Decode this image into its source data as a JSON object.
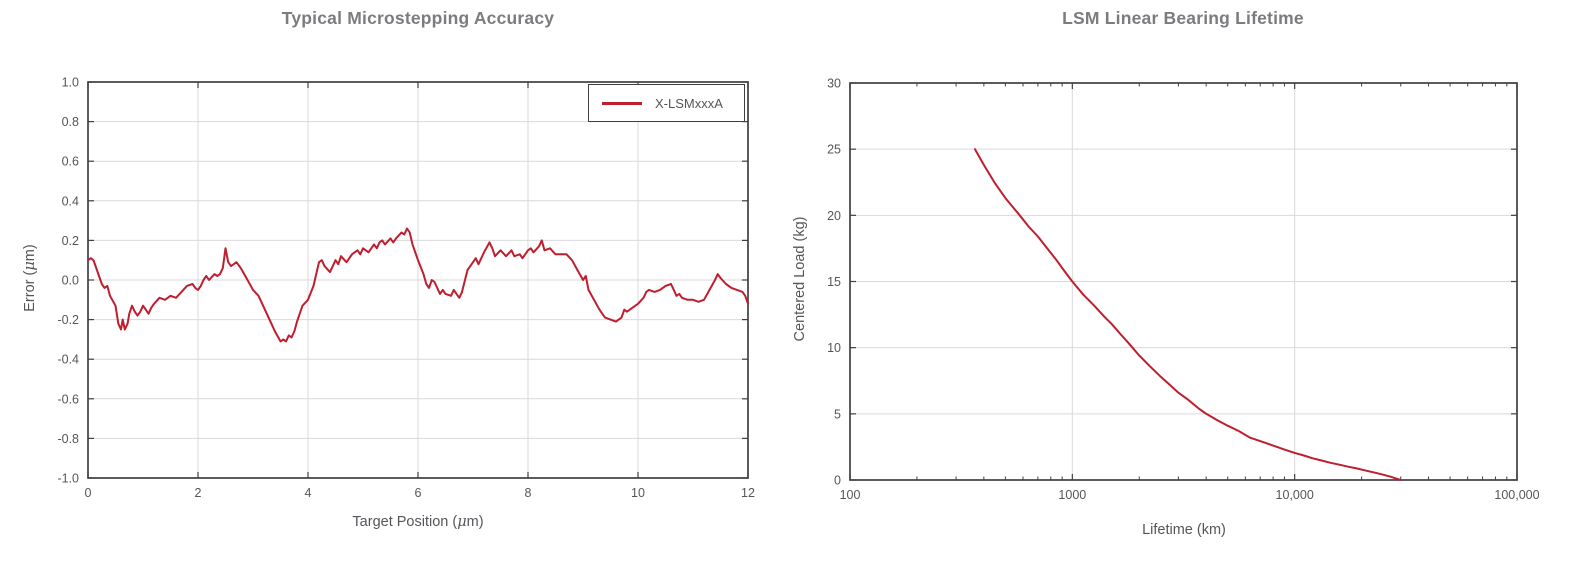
{
  "colors": {
    "series_red": "#be1e2d",
    "title_gray": "#7b7c7f",
    "tick_gray": "#55565a",
    "grid_gray": "#d9d9da",
    "axis_dark": "#3f4042",
    "background": "#ffffff"
  },
  "chart_data": [
    {
      "type": "line",
      "title": "Typical Microstepping Accuracy",
      "xlabel": "Target Position (μm)",
      "ylabel": "Error (μm)",
      "xlim": [
        0,
        12
      ],
      "ylim": [
        -1.0,
        1.0
      ],
      "xscale": "linear",
      "grid": "on",
      "legend_position": "top-right",
      "legend": [
        "X-LSMxxxA"
      ],
      "xticks": [
        0,
        2,
        4,
        6,
        8,
        10,
        12
      ],
      "xtick_labels": [
        "0",
        "2",
        "4",
        "6",
        "8",
        "10",
        "12"
      ],
      "yticks": [
        1.0,
        0.8,
        0.6,
        0.4,
        0.2,
        0.0,
        -0.2,
        -0.4,
        -0.6,
        -0.8,
        -1.0
      ],
      "ytick_labels": [
        "1.0",
        "0.8",
        "0.6",
        "0.4",
        "0.2",
        "0.0",
        "-0.2",
        "-0.4",
        "-0.6",
        "-0.8",
        "-1.0"
      ],
      "series": [
        {
          "name": "X-LSMxxxA",
          "color": "#be1e2d",
          "points": [
            [
              0,
              0.1
            ],
            [
              0.05,
              0.11
            ],
            [
              0.1,
              0.1
            ],
            [
              0.2,
              0.02
            ],
            [
              0.25,
              -0.02
            ],
            [
              0.3,
              -0.04
            ],
            [
              0.35,
              -0.03
            ],
            [
              0.4,
              -0.08
            ],
            [
              0.5,
              -0.13
            ],
            [
              0.55,
              -0.22
            ],
            [
              0.6,
              -0.25
            ],
            [
              0.63,
              -0.2
            ],
            [
              0.67,
              -0.25
            ],
            [
              0.72,
              -0.22
            ],
            [
              0.75,
              -0.17
            ],
            [
              0.8,
              -0.13
            ],
            [
              0.85,
              -0.16
            ],
            [
              0.9,
              -0.18
            ],
            [
              0.95,
              -0.16
            ],
            [
              1,
              -0.13
            ],
            [
              1.05,
              -0.15
            ],
            [
              1.1,
              -0.17
            ],
            [
              1.15,
              -0.14
            ],
            [
              1.2,
              -0.12
            ],
            [
              1.3,
              -0.09
            ],
            [
              1.4,
              -0.1
            ],
            [
              1.5,
              -0.08
            ],
            [
              1.6,
              -0.09
            ],
            [
              1.7,
              -0.06
            ],
            [
              1.8,
              -0.03
            ],
            [
              1.9,
              -0.02
            ],
            [
              1.95,
              -0.04
            ],
            [
              2,
              -0.05
            ],
            [
              2.05,
              -0.03
            ],
            [
              2.1,
              0
            ],
            [
              2.15,
              0.02
            ],
            [
              2.2,
              0
            ],
            [
              2.3,
              0.03
            ],
            [
              2.35,
              0.02
            ],
            [
              2.4,
              0.03
            ],
            [
              2.45,
              0.06
            ],
            [
              2.5,
              0.16
            ],
            [
              2.55,
              0.09
            ],
            [
              2.6,
              0.07
            ],
            [
              2.7,
              0.09
            ],
            [
              2.75,
              0.07
            ],
            [
              2.8,
              0.05
            ],
            [
              2.9,
              0
            ],
            [
              3,
              -0.05
            ],
            [
              3.1,
              -0.08
            ],
            [
              3.2,
              -0.14
            ],
            [
              3.3,
              -0.2
            ],
            [
              3.4,
              -0.26
            ],
            [
              3.5,
              -0.31
            ],
            [
              3.55,
              -0.3
            ],
            [
              3.6,
              -0.31
            ],
            [
              3.65,
              -0.28
            ],
            [
              3.7,
              -0.29
            ],
            [
              3.75,
              -0.26
            ],
            [
              3.8,
              -0.21
            ],
            [
              3.9,
              -0.13
            ],
            [
              4,
              -0.1
            ],
            [
              4.1,
              -0.03
            ],
            [
              4.2,
              0.09
            ],
            [
              4.25,
              0.1
            ],
            [
              4.3,
              0.07
            ],
            [
              4.4,
              0.04
            ],
            [
              4.5,
              0.1
            ],
            [
              4.55,
              0.08
            ],
            [
              4.6,
              0.12
            ],
            [
              4.7,
              0.09
            ],
            [
              4.8,
              0.13
            ],
            [
              4.9,
              0.15
            ],
            [
              4.95,
              0.13
            ],
            [
              5,
              0.16
            ],
            [
              5.1,
              0.14
            ],
            [
              5.2,
              0.18
            ],
            [
              5.25,
              0.16
            ],
            [
              5.3,
              0.19
            ],
            [
              5.35,
              0.2
            ],
            [
              5.4,
              0.18
            ],
            [
              5.5,
              0.21
            ],
            [
              5.55,
              0.19
            ],
            [
              5.6,
              0.21
            ],
            [
              5.7,
              0.24
            ],
            [
              5.75,
              0.23
            ],
            [
              5.8,
              0.26
            ],
            [
              5.85,
              0.24
            ],
            [
              5.9,
              0.18
            ],
            [
              6,
              0.1
            ],
            [
              6.1,
              0.03
            ],
            [
              6.15,
              -0.02
            ],
            [
              6.2,
              -0.04
            ],
            [
              6.25,
              0
            ],
            [
              6.3,
              -0.01
            ],
            [
              6.4,
              -0.07
            ],
            [
              6.45,
              -0.05
            ],
            [
              6.5,
              -0.07
            ],
            [
              6.6,
              -0.08
            ],
            [
              6.65,
              -0.05
            ],
            [
              6.7,
              -0.07
            ],
            [
              6.75,
              -0.09
            ],
            [
              6.8,
              -0.06
            ],
            [
              6.9,
              0.05
            ],
            [
              7,
              0.09
            ],
            [
              7.05,
              0.11
            ],
            [
              7.1,
              0.08
            ],
            [
              7.2,
              0.14
            ],
            [
              7.3,
              0.19
            ],
            [
              7.35,
              0.16
            ],
            [
              7.4,
              0.12
            ],
            [
              7.5,
              0.15
            ],
            [
              7.6,
              0.12
            ],
            [
              7.7,
              0.15
            ],
            [
              7.75,
              0.12
            ],
            [
              7.85,
              0.13
            ],
            [
              7.9,
              0.11
            ],
            [
              8,
              0.15
            ],
            [
              8.05,
              0.16
            ],
            [
              8.1,
              0.14
            ],
            [
              8.2,
              0.17
            ],
            [
              8.25,
              0.2
            ],
            [
              8.3,
              0.15
            ],
            [
              8.4,
              0.16
            ],
            [
              8.5,
              0.13
            ],
            [
              8.6,
              0.13
            ],
            [
              8.7,
              0.13
            ],
            [
              8.8,
              0.1
            ],
            [
              8.9,
              0.05
            ],
            [
              9,
              0
            ],
            [
              9.05,
              0.02
            ],
            [
              9.1,
              -0.05
            ],
            [
              9.2,
              -0.1
            ],
            [
              9.3,
              -0.15
            ],
            [
              9.4,
              -0.19
            ],
            [
              9.5,
              -0.2
            ],
            [
              9.6,
              -0.21
            ],
            [
              9.7,
              -0.19
            ],
            [
              9.75,
              -0.15
            ],
            [
              9.8,
              -0.16
            ],
            [
              9.9,
              -0.14
            ],
            [
              10,
              -0.12
            ],
            [
              10.1,
              -0.09
            ],
            [
              10.15,
              -0.06
            ],
            [
              10.2,
              -0.05
            ],
            [
              10.3,
              -0.06
            ],
            [
              10.4,
              -0.05
            ],
            [
              10.5,
              -0.03
            ],
            [
              10.6,
              -0.02
            ],
            [
              10.65,
              -0.05
            ],
            [
              10.7,
              -0.08
            ],
            [
              10.75,
              -0.07
            ],
            [
              10.8,
              -0.09
            ],
            [
              10.9,
              -0.1
            ],
            [
              11,
              -0.1
            ],
            [
              11.1,
              -0.11
            ],
            [
              11.2,
              -0.1
            ],
            [
              11.3,
              -0.05
            ],
            [
              11.4,
              0
            ],
            [
              11.45,
              0.03
            ],
            [
              11.5,
              0.01
            ],
            [
              11.6,
              -0.02
            ],
            [
              11.7,
              -0.04
            ],
            [
              11.8,
              -0.05
            ],
            [
              11.9,
              -0.06
            ],
            [
              11.95,
              -0.08
            ],
            [
              12,
              -0.12
            ]
          ]
        }
      ]
    },
    {
      "type": "line",
      "title": "LSM Linear Bearing Lifetime",
      "xlabel": "Lifetime (km)",
      "ylabel": "Centered Load (kg)",
      "xlim": [
        100,
        100000
      ],
      "ylim": [
        0,
        30
      ],
      "xscale": "log",
      "grid": "on",
      "legend": [],
      "xticks": [
        100,
        1000,
        10000,
        100000
      ],
      "xtick_labels": [
        "100",
        "1000",
        "10,000",
        "100,000"
      ],
      "yticks": [
        0,
        5,
        10,
        15,
        20,
        25,
        30
      ],
      "ytick_labels": [
        "0",
        "5",
        "10",
        "15",
        "20",
        "25",
        "30"
      ],
      "series": [
        {
          "name": "LSM linear bearing lifetime",
          "color": "#be1e2d",
          "points": [
            [
              365,
              25
            ],
            [
              400,
              23.8
            ],
            [
              450,
              22.4
            ],
            [
              500,
              21.3
            ],
            [
              580,
              20
            ],
            [
              640,
              19.1
            ],
            [
              700,
              18.4
            ],
            [
              780,
              17.4
            ],
            [
              850,
              16.6
            ],
            [
              920,
              15.8
            ],
            [
              1000,
              15
            ],
            [
              1120,
              14
            ],
            [
              1250,
              13.2
            ],
            [
              1400,
              12.3
            ],
            [
              1500,
              11.8
            ],
            [
              1650,
              11
            ],
            [
              1800,
              10.3
            ],
            [
              2000,
              9.4
            ],
            [
              2230,
              8.6
            ],
            [
              2500,
              7.8
            ],
            [
              2700,
              7.3
            ],
            [
              3000,
              6.6
            ],
            [
              3300,
              6.1
            ],
            [
              3700,
              5.4
            ],
            [
              4000,
              5
            ],
            [
              4500,
              4.5
            ],
            [
              5000,
              4.1
            ],
            [
              5600,
              3.7
            ],
            [
              6300,
              3.2
            ],
            [
              7100,
              2.9
            ],
            [
              8000,
              2.6
            ],
            [
              9000,
              2.3
            ],
            [
              10000,
              2.05
            ],
            [
              11000,
              1.85
            ],
            [
              12000,
              1.65
            ],
            [
              13000,
              1.5
            ],
            [
              14500,
              1.3
            ],
            [
              16000,
              1.15
            ],
            [
              17500,
              1
            ],
            [
              19000,
              0.88
            ],
            [
              21000,
              0.7
            ],
            [
              23000,
              0.55
            ],
            [
              25000,
              0.4
            ],
            [
              27000,
              0.25
            ],
            [
              28500,
              0.12
            ],
            [
              30000,
              0
            ]
          ]
        }
      ]
    }
  ]
}
